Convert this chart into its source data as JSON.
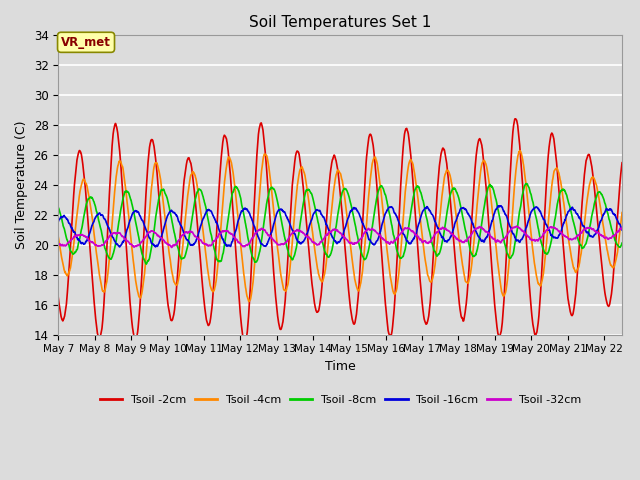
{
  "title": "Soil Temperatures Set 1",
  "xlabel": "Time",
  "ylabel": "Soil Temperature (C)",
  "ylim": [
    14,
    34
  ],
  "xlim_days": [
    0,
    15.5
  ],
  "x_tick_labels": [
    "May 7",
    "May 8",
    "May 9",
    "May 10",
    "May 11",
    "May 12",
    "May 13",
    "May 14",
    "May 15",
    "May 16",
    "May 17",
    "May 18",
    "May 19",
    "May 20",
    "May 21",
    "May 22"
  ],
  "annotation_text": "VR_met",
  "bg_color": "#dcdcdc",
  "plot_bg_color": "#dcdcdc",
  "grid_color": "#ffffff",
  "series": [
    {
      "label": "Tsoil -2cm",
      "color": "#dd0000",
      "base_mean": 20.5,
      "amp_envelope": [
        5.5,
        7.5,
        6.5,
        5.0,
        6.5,
        7.5,
        5.5,
        5.0,
        6.5,
        7.0,
        5.5,
        6.0,
        7.5,
        6.5,
        5.0
      ],
      "phase_shift": 0.0,
      "linewidth": 1.2
    },
    {
      "label": "Tsoil -4cm",
      "color": "#ff8800",
      "base_mean": 21.0,
      "amp_envelope": [
        3.0,
        4.5,
        4.5,
        3.5,
        4.5,
        5.0,
        4.0,
        3.5,
        4.5,
        4.5,
        3.5,
        4.0,
        5.0,
        3.8,
        3.0
      ],
      "phase_shift": 0.12,
      "linewidth": 1.2
    },
    {
      "label": "Tsoil -8cm",
      "color": "#00cc00",
      "base_mean": 21.2,
      "amp_envelope": [
        1.8,
        2.2,
        2.5,
        2.2,
        2.5,
        2.5,
        2.3,
        2.2,
        2.4,
        2.4,
        2.2,
        2.3,
        2.5,
        2.2,
        1.8
      ],
      "phase_shift": 0.3,
      "linewidth": 1.2
    },
    {
      "label": "Tsoil -16cm",
      "color": "#0000dd",
      "base_mean": 21.0,
      "amp_envelope": [
        0.9,
        1.1,
        1.2,
        1.1,
        1.2,
        1.3,
        1.1,
        1.1,
        1.2,
        1.2,
        1.1,
        1.1,
        1.2,
        1.0,
        0.9
      ],
      "phase_shift": 0.55,
      "linewidth": 1.2
    },
    {
      "label": "Tsoil -32cm",
      "color": "#cc00cc",
      "base_mean": 20.3,
      "amp_envelope": [
        0.35,
        0.45,
        0.5,
        0.45,
        0.5,
        0.55,
        0.45,
        0.45,
        0.5,
        0.5,
        0.45,
        0.48,
        0.5,
        0.42,
        0.35
      ],
      "phase_shift": 1.0,
      "linewidth": 1.2
    }
  ]
}
